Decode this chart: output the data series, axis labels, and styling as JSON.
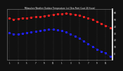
{
  "title": "Milwaukee Weather Outdoor Temperature (vs) Dew Point (Last 24 Hours)",
  "temp": [
    52,
    50,
    51,
    52,
    52,
    53,
    54,
    54,
    55,
    56,
    57,
    58,
    58,
    59,
    58,
    57,
    56,
    54,
    52,
    50,
    47,
    44,
    41,
    38
  ],
  "dewpoint": [
    30,
    28,
    28,
    29,
    30,
    31,
    32,
    33,
    34,
    35,
    35,
    34,
    33,
    31,
    28,
    25,
    22,
    18,
    14,
    10,
    6,
    3,
    0,
    -5
  ],
  "temp_color": "#ff2222",
  "dew_color": "#2222ff",
  "background": "#111111",
  "plot_bg": "#111111",
  "ylim": [
    -10,
    65
  ],
  "ytick_vals": [
    60,
    50,
    40,
    30,
    20,
    10,
    0
  ],
  "ytick_labels": [
    "60",
    "50",
    "40",
    "30",
    "20",
    "10",
    "0"
  ],
  "n_points": 24,
  "vgrid_color": "#555555",
  "vgrid_every": 2
}
